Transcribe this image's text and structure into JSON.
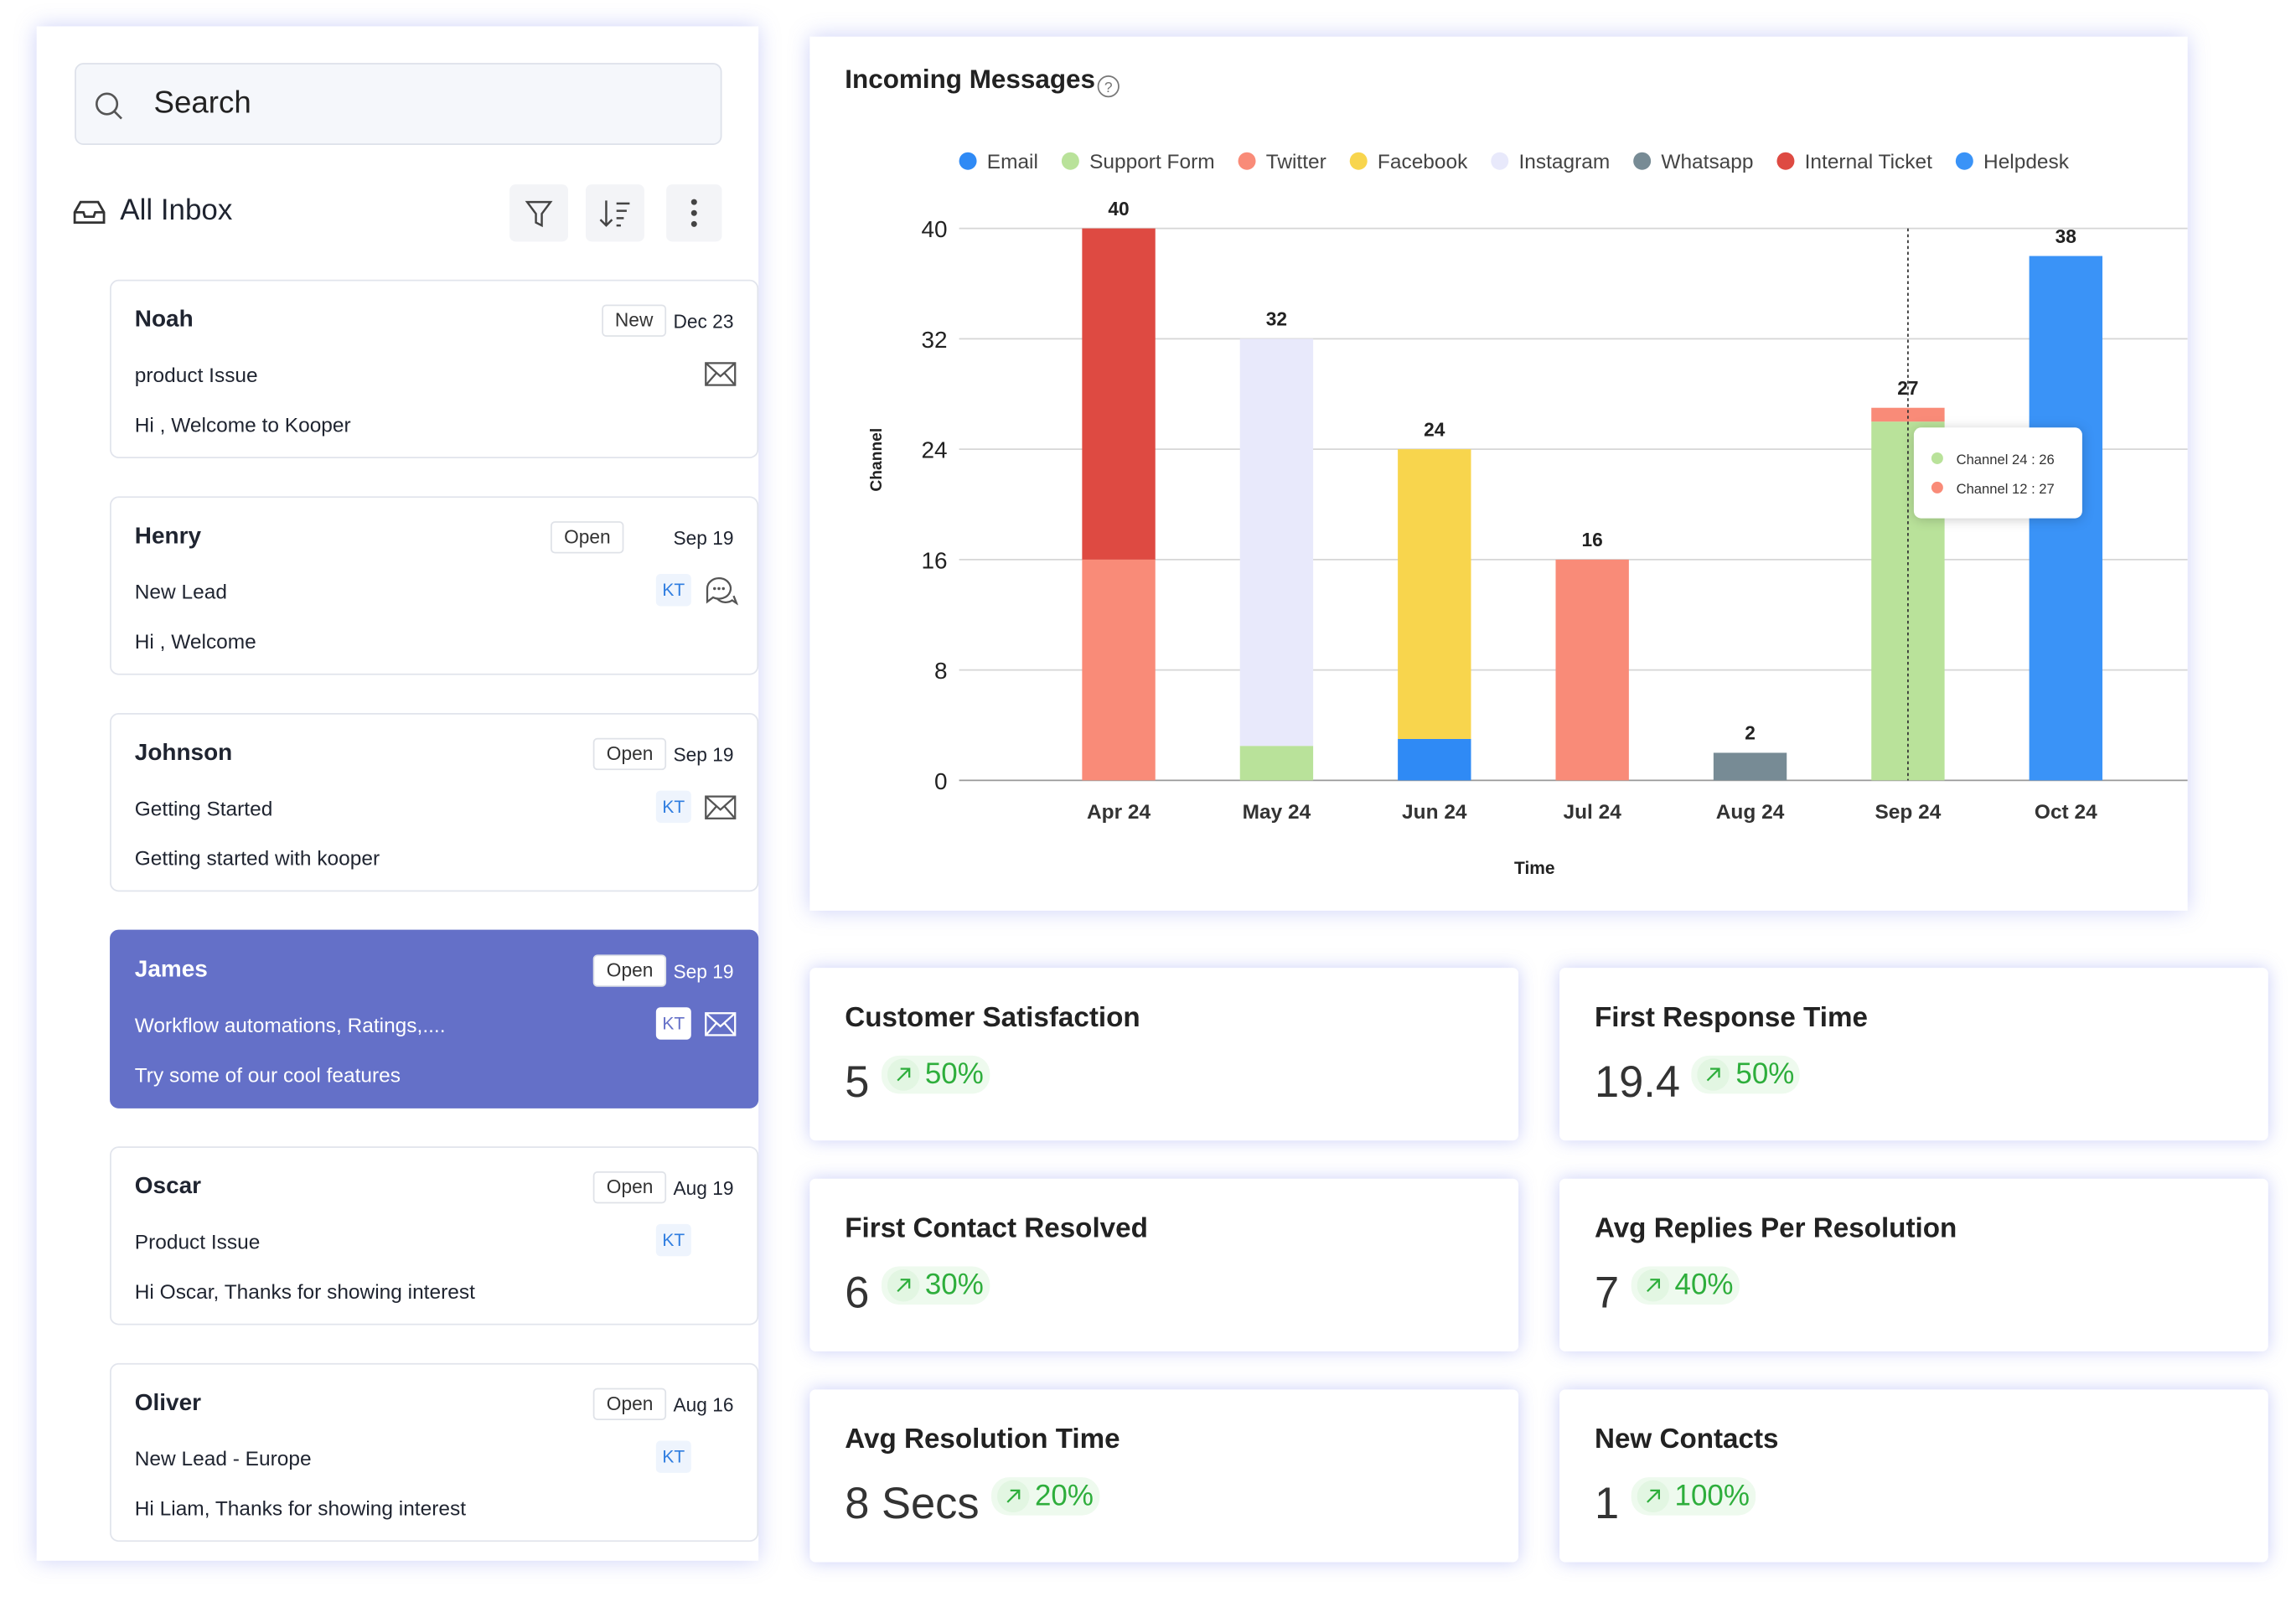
{
  "inbox": {
    "search_placeholder": "Search",
    "title": "All Inbox",
    "conversations": [
      {
        "name": "Noah",
        "status": "New",
        "date": "Dec 23",
        "subject": "product Issue",
        "preview": "Hi , Welcome to Kooper"
      },
      {
        "name": "Henry",
        "status": "Open",
        "date": "Sep 19",
        "subject": "New Lead",
        "tag": "KT",
        "preview": "Hi , Welcome"
      },
      {
        "name": "Johnson",
        "status": "Open",
        "date": "Sep 19",
        "subject": "Getting Started",
        "tag": "KT",
        "preview": "Getting started with kooper"
      },
      {
        "name": "James",
        "status": "Open",
        "date": "Sep 19",
        "subject": "Workflow automations, Ratings,....",
        "tag": "KT",
        "preview": "Try some of our cool features"
      },
      {
        "name": "Oscar",
        "status": "Open",
        "date": "Aug 19",
        "subject": "Product Issue",
        "tag": "KT",
        "preview": "Hi Oscar, Thanks for showing interest"
      },
      {
        "name": "Oliver",
        "status": "Open",
        "date": "Aug 16",
        "subject": "New Lead - Europe",
        "tag": "KT",
        "preview": "Hi Liam, Thanks for showing interest"
      }
    ]
  },
  "chart_data": {
    "type": "stacked_bar",
    "title": "Incoming Messages",
    "x_label": "Time",
    "y_label": "Channel",
    "categories": [
      "Apr 24",
      "May 24",
      "Jun 24",
      "Jul 24",
      "Aug 24",
      "Sep 24",
      "Oct 24"
    ],
    "series": [
      {
        "name": "Email",
        "color": "#2f8af5",
        "values": [
          null,
          null,
          3,
          null,
          null,
          null,
          null
        ]
      },
      {
        "name": "Support Form",
        "color": "#b9e29a",
        "values": [
          null,
          2.5,
          null,
          null,
          null,
          26,
          null
        ]
      },
      {
        "name": "Twitter",
        "color": "#f98b78",
        "values": [
          16,
          null,
          null,
          16,
          null,
          1,
          null
        ]
      },
      {
        "name": "Facebook",
        "color": "#f8d54d",
        "values": [
          null,
          null,
          21,
          null,
          null,
          null,
          null
        ]
      },
      {
        "name": "Instagram",
        "color": "#e8e9fb",
        "values": [
          null,
          29.5,
          null,
          null,
          null,
          null,
          null
        ]
      },
      {
        "name": "Whatsapp",
        "color": "#778b95",
        "values": [
          null,
          null,
          null,
          null,
          2,
          null,
          null
        ]
      },
      {
        "name": "Internal Ticket",
        "color": "#de4a42",
        "values": [
          24,
          null,
          null,
          null,
          null,
          null,
          null
        ]
      },
      {
        "name": "Helpdesk",
        "color": "#3a93f7",
        "values": [
          null,
          null,
          null,
          null,
          null,
          null,
          38
        ]
      }
    ],
    "total_labels": [
      40,
      32,
      24,
      16,
      2,
      27,
      38
    ],
    "ylim": [
      0,
      40
    ],
    "yticks": [
      0,
      8,
      16,
      24,
      32,
      40
    ],
    "grid": true,
    "legend": "top",
    "tooltip": [
      "Channel 24 : 26",
      "Channel 12 : 27"
    ]
  },
  "metrics": [
    {
      "title": "Customer Satisfaction",
      "value": "5",
      "change": "50%"
    },
    {
      "title": "First Response Time",
      "value": "19.4",
      "change": "50%"
    },
    {
      "title": "First Contact Resolved",
      "value": "6",
      "change": "30%"
    },
    {
      "title": "Avg Replies Per Resolution",
      "value": "7",
      "change": "40%"
    },
    {
      "title": "Avg Resolution Time",
      "value": "8 Secs",
      "change": "20%"
    },
    {
      "title": "New Contacts",
      "value": "1",
      "change": "100%"
    }
  ]
}
